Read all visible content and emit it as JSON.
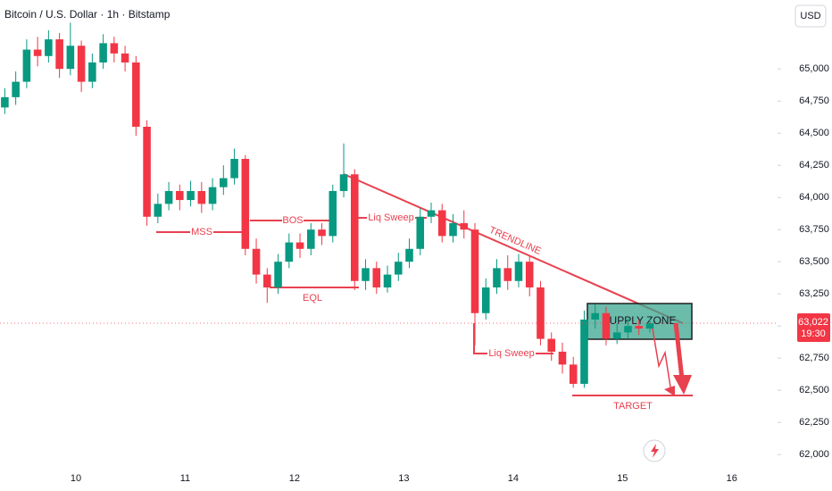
{
  "chart_data": {
    "type": "candlestick",
    "title": "Bitcoin / U.S. Dollar · 1h · Bitstamp",
    "currency": "USD",
    "x": [
      9.35,
      9.45,
      9.55,
      9.65,
      9.75,
      9.85,
      9.95,
      10.05,
      10.15,
      10.25,
      10.35,
      10.45,
      10.55,
      10.65,
      10.75,
      10.85,
      10.95,
      11.05,
      11.15,
      11.25,
      11.35,
      11.45,
      11.55,
      11.65,
      11.75,
      11.85,
      11.95,
      12.05,
      12.15,
      12.25,
      12.35,
      12.45,
      12.55,
      12.65,
      12.75,
      12.85,
      12.95,
      13.05,
      13.15,
      13.25,
      13.35,
      13.45,
      13.55,
      13.65,
      13.75,
      13.85,
      13.95,
      14.05,
      14.15,
      14.25,
      14.35,
      14.45,
      14.55,
      14.65,
      14.75,
      14.85,
      14.95,
      15.05,
      15.15,
      15.25
    ],
    "open": [
      64700,
      64780,
      64900,
      65150,
      65100,
      65230,
      65000,
      65180,
      64900,
      65050,
      65200,
      65120,
      65050,
      64550,
      63850,
      63950,
      64050,
      63980,
      64050,
      63950,
      64080,
      64150,
      64300,
      63600,
      63400,
      63300,
      63500,
      63650,
      63600,
      63750,
      63700,
      64050,
      64180,
      63350,
      63450,
      63300,
      63400,
      63500,
      63600,
      63850,
      63900,
      63700,
      63800,
      63750,
      63100,
      63300,
      63450,
      63350,
      63500,
      63300,
      62900,
      62800,
      62700,
      62550,
      63050,
      63100,
      62900,
      62950,
      63000,
      62980
    ],
    "high": [
      64850,
      64980,
      65230,
      65250,
      65300,
      65280,
      65360,
      65220,
      65120,
      65270,
      65250,
      65180,
      65100,
      64600,
      64030,
      64120,
      64100,
      64130,
      64120,
      64150,
      64250,
      64380,
      64330,
      63680,
      63450,
      63560,
      63720,
      63720,
      63800,
      63800,
      64100,
      64420,
      64220,
      63520,
      63500,
      63470,
      63570,
      63680,
      63920,
      63960,
      63950,
      63870,
      63900,
      63800,
      63370,
      63520,
      63550,
      63560,
      63540,
      63350,
      62950,
      62870,
      62760,
      63120,
      63170,
      63150,
      63020,
      63060,
      63050,
      63060
    ],
    "low": [
      64650,
      64720,
      64850,
      65020,
      65050,
      64930,
      64950,
      64820,
      64850,
      65000,
      65050,
      64980,
      64480,
      63780,
      63800,
      63900,
      63900,
      63930,
      63880,
      63900,
      64020,
      64100,
      63550,
      63330,
      63180,
      63250,
      63450,
      63530,
      63550,
      63630,
      63650,
      64000,
      63280,
      63280,
      63250,
      63260,
      63350,
      63450,
      63550,
      63800,
      63650,
      63650,
      63680,
      62850,
      63050,
      63250,
      63280,
      63300,
      63230,
      62850,
      62730,
      62630,
      62520,
      62520,
      62980,
      62850,
      62860,
      62900,
      62930,
      62950
    ],
    "close": [
      64780,
      64900,
      65150,
      65100,
      65230,
      65000,
      65180,
      64900,
      65050,
      65200,
      65120,
      65050,
      64550,
      63850,
      63950,
      64050,
      63980,
      64050,
      63950,
      64080,
      64150,
      64300,
      63600,
      63400,
      63300,
      63500,
      63650,
      63600,
      63750,
      63700,
      64050,
      64180,
      63350,
      63450,
      63300,
      63400,
      63500,
      63600,
      63850,
      63900,
      63700,
      63800,
      63750,
      63100,
      63300,
      63450,
      63350,
      63500,
      63300,
      62900,
      62800,
      62700,
      62550,
      63050,
      63100,
      62900,
      62950,
      63000,
      62980,
      63022
    ],
    "up_color": "#089981",
    "down_color": "#f23645",
    "xlim": [
      9.306,
      16.41
    ],
    "xticks": [
      10,
      11,
      12,
      13,
      14,
      15,
      16
    ],
    "ylim": [
      61890,
      65536
    ],
    "yticks": [
      {
        "value": 62000,
        "label": "62,000"
      },
      {
        "value": 62250,
        "label": "62,250"
      },
      {
        "value": 62500,
        "label": "62,500"
      },
      {
        "value": 62750,
        "label": "62,750"
      },
      {
        "value": 63000,
        "label": "63,000"
      },
      {
        "value": 63250,
        "label": "63,250"
      },
      {
        "value": 63500,
        "label": "63,500"
      },
      {
        "value": 63750,
        "label": "63,750"
      },
      {
        "value": 64000,
        "label": "64,000"
      },
      {
        "value": 64250,
        "label": "64,250"
      },
      {
        "value": 64500,
        "label": "64,500"
      },
      {
        "value": 64750,
        "label": "64,750"
      },
      {
        "value": 65000,
        "label": "65,000"
      }
    ],
    "grid": false,
    "last_price": {
      "value": 63022,
      "label": "63,022"
    },
    "countdown": "19:30",
    "annotations": {
      "mss": "MSS",
      "bos": "BOS",
      "eql": "EQL",
      "liq_sweep_top": "Liq Sweep",
      "liq_sweep_bottom": "Liq Sweep",
      "trendline": "TRENDLINE",
      "supply_zone": "SUPPLY ZONE",
      "target": "TARGET"
    }
  }
}
